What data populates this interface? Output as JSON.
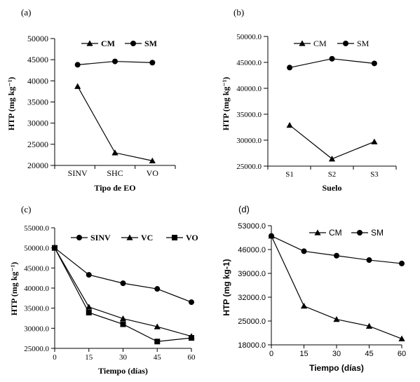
{
  "chart_data": [
    {
      "panel_label": "(a)",
      "type": "line",
      "categories": [
        "SINV",
        "SHC",
        "VO"
      ],
      "xlabel": "Tipo de EO",
      "ylabel": "HTP (mg kg⁻¹)",
      "ylim": [
        20000,
        50000
      ],
      "yticks": [
        20000,
        25000,
        30000,
        35000,
        40000,
        45000,
        50000
      ],
      "ytick_labels": [
        "20000",
        "25000",
        "30000",
        "35000",
        "40000",
        "45000",
        "50000"
      ],
      "legend_position": "top-center",
      "series": [
        {
          "name": "CM",
          "marker": "triangle",
          "values": [
            38700,
            23000,
            21100
          ]
        },
        {
          "name": "SM",
          "marker": "circle",
          "values": [
            43800,
            44600,
            44300
          ]
        }
      ]
    },
    {
      "panel_label": "(b)",
      "type": "line",
      "categories": [
        "S1",
        "S2",
        "S3"
      ],
      "xlabel": "Suelo",
      "ylabel": "HTP (mg kg⁻¹)",
      "ylim": [
        25000,
        50000
      ],
      "yticks": [
        25000,
        30000,
        35000,
        40000,
        45000,
        50000
      ],
      "ytick_labels": [
        "25000.0",
        "30000.0",
        "35000.0",
        "40000.0",
        "45000.0",
        "50000.0"
      ],
      "legend_position": "top-center",
      "series": [
        {
          "name": "CM",
          "marker": "triangle",
          "values": [
            32900,
            26400,
            29700
          ]
        },
        {
          "name": "SM",
          "marker": "circle",
          "values": [
            44000,
            45700,
            44800
          ]
        }
      ]
    },
    {
      "panel_label": "(c)",
      "type": "line",
      "x": [
        0,
        15,
        30,
        45,
        60
      ],
      "xlabel": "Tiempo (días)",
      "ylabel": "HTP (mg kg⁻¹)",
      "xlim": [
        0,
        60
      ],
      "xticks": [
        0,
        15,
        30,
        45,
        60
      ],
      "ylim": [
        25000,
        55000
      ],
      "yticks": [
        25000,
        30000,
        35000,
        40000,
        45000,
        50000,
        55000
      ],
      "ytick_labels": [
        "25000.0",
        "30000.0",
        "35000.0",
        "40000.0",
        "45000.0",
        "50000.0",
        "55000.0"
      ],
      "legend_position": "top-right",
      "series": [
        {
          "name": "SINV",
          "marker": "circle",
          "values": [
            50000,
            43300,
            41200,
            39800,
            36500
          ]
        },
        {
          "name": "VC",
          "marker": "triangle",
          "values": [
            50000,
            35300,
            32400,
            30400,
            28000
          ]
        },
        {
          "name": "VO",
          "marker": "square",
          "values": [
            50000,
            33900,
            31000,
            26700,
            27600
          ]
        }
      ]
    },
    {
      "panel_label": "(d)",
      "type": "line",
      "x": [
        0,
        15,
        30,
        45,
        60
      ],
      "xlabel": "Tiempo (días)",
      "ylabel": "HTP (mg kg-1)",
      "xlim": [
        0,
        60
      ],
      "xticks": [
        0,
        15,
        30,
        45,
        60
      ],
      "ylim": [
        18000,
        53000
      ],
      "yticks": [
        18000,
        25000,
        32000,
        39000,
        46000,
        53000
      ],
      "ytick_labels": [
        "18000.0",
        "25000.0",
        "32000.0",
        "39000.0",
        "46000.0",
        "53000.0"
      ],
      "legend_position": "top-center",
      "series": [
        {
          "name": "CM",
          "marker": "triangle",
          "values": [
            50000,
            29400,
            25500,
            23500,
            19800
          ]
        },
        {
          "name": "SM",
          "marker": "circle",
          "values": [
            50000,
            45500,
            44200,
            42900,
            41900
          ]
        }
      ]
    }
  ]
}
